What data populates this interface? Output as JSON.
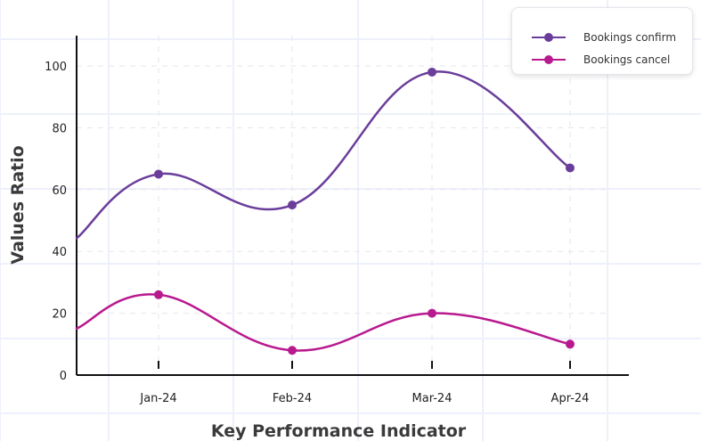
{
  "chart_data": {
    "type": "line",
    "categories": [
      "Jan-24",
      "Feb-24",
      "Mar-24",
      "Apr-24"
    ],
    "series": [
      {
        "name": "Bookings confirm",
        "values": [
          65,
          55,
          98,
          67
        ],
        "color": "#6a3d9a"
      },
      {
        "name": "Bookings cancel",
        "values": [
          26,
          8,
          20,
          10
        ],
        "color": "#b8198f"
      }
    ],
    "xlabel": "Key Performance Indicator",
    "ylabel": "Values Ratio",
    "ylim": [
      0,
      110
    ],
    "yticks": [
      "0",
      "20",
      "40",
      "60",
      "80",
      "100"
    ],
    "grid": true,
    "legend_position": "top-right",
    "smooth": true
  }
}
